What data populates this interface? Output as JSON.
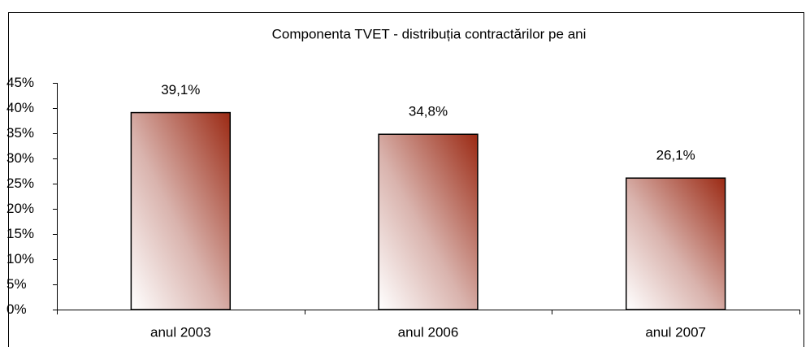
{
  "chart_data": {
    "type": "bar",
    "title": "Componenta TVET - distribuția contractărilor pe ani",
    "categories": [
      "anul 2003",
      "anul 2006",
      "anul 2007"
    ],
    "values": [
      39.1,
      34.8,
      26.1
    ],
    "value_labels": [
      "39,1%",
      "34,8%",
      "26,1%"
    ],
    "color": "#9b2a14",
    "ylim": [
      0,
      45
    ],
    "yticks": [
      {
        "value": 0,
        "label": "0%"
      },
      {
        "value": 5,
        "label": "5%"
      },
      {
        "value": 10,
        "label": "10%"
      },
      {
        "value": 15,
        "label": "15%"
      },
      {
        "value": 20,
        "label": "20%"
      },
      {
        "value": 25,
        "label": "25%"
      },
      {
        "value": 30,
        "label": "30%"
      },
      {
        "value": 35,
        "label": "35%"
      },
      {
        "value": 40,
        "label": "40%"
      },
      {
        "value": 45,
        "label": "45%"
      }
    ],
    "grid": false
  }
}
